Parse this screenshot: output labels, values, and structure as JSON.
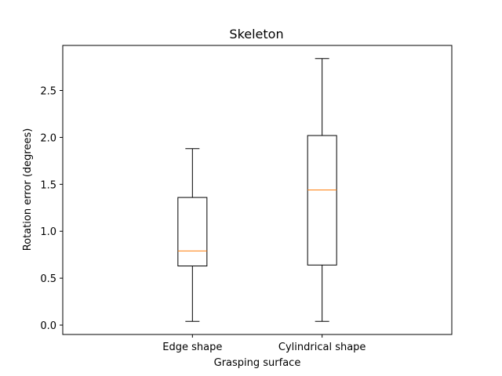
{
  "chart_data": {
    "type": "box",
    "title": "Skeleton",
    "xlabel": "Grasping surface",
    "ylabel": "Rotation error (degrees)",
    "categories": [
      "Edge shape",
      "Cylindrical shape"
    ],
    "boxes": [
      {
        "category": "Edge shape",
        "whisker_low": 0.04,
        "q1": 0.63,
        "median": 0.79,
        "q3": 1.36,
        "whisker_high": 1.88
      },
      {
        "category": "Cylindrical shape",
        "whisker_low": 0.04,
        "q1": 0.64,
        "median": 1.44,
        "q3": 2.02,
        "whisker_high": 2.84
      }
    ],
    "ylim": [
      -0.1,
      2.98
    ],
    "yticks": [
      0.0,
      0.5,
      1.0,
      1.5,
      2.0,
      2.5
    ],
    "ytick_labels": [
      "0.0",
      "0.5",
      "1.0",
      "1.5",
      "2.0",
      "2.5"
    ],
    "grid": false,
    "colors": {
      "box": "#000000",
      "median": "#ff7f0e"
    }
  }
}
